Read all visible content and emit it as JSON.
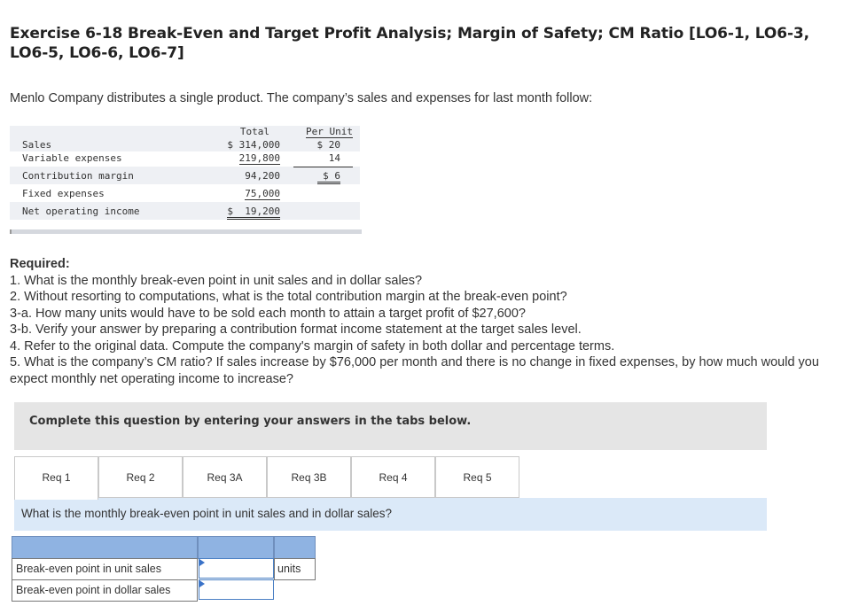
{
  "title": "Exercise 6-18 Break-Even and Target Profit Analysis; Margin of Safety; CM Ratio [LO6-1, LO6-3, LO6-5, LO6-6, LO6-7]",
  "intro": "Menlo Company distributes a single product. The company’s sales and expenses for last month follow:",
  "statement": {
    "col_total": "Total",
    "col_per_unit": "Per Unit",
    "rows": [
      {
        "label": "Sales",
        "total": "$ 314,000",
        "per_unit": "$ 20"
      },
      {
        "label": "Variable expenses",
        "total": "219,800",
        "per_unit": "14"
      },
      {
        "label": "Contribution margin",
        "total": "94,200",
        "per_unit": "$  6"
      },
      {
        "label": "Fixed expenses",
        "total": "75,000",
        "per_unit": ""
      },
      {
        "label": "Net operating income",
        "total": "$  19,200",
        "per_unit": ""
      }
    ]
  },
  "required": {
    "heading": "Required:",
    "items": [
      "1. What is the monthly break-even point in unit sales and in dollar sales?",
      "2. Without resorting to computations, what is the total contribution margin at the break-even point?",
      "3-a. How many units would have to be sold each month to attain a target profit of $27,600?",
      "3-b. Verify your answer by preparing a contribution format income statement at the target sales level.",
      "4. Refer to the original data. Compute the company's margin of safety in both dollar and percentage terms.",
      "5. What is the company’s CM ratio? If sales increase by $76,000 per month and there is no change in fixed expenses, by how much would you expect monthly net operating income to increase?"
    ]
  },
  "complete_text": "Complete this question by entering your answers in the tabs below.",
  "tabs": [
    "Req 1",
    "Req 2",
    "Req 3A",
    "Req 3B",
    "Req 4",
    "Req 5"
  ],
  "question": "What is the monthly break-even point in unit sales and in dollar sales?",
  "answers": {
    "row1_label": "Break-even point in unit sales",
    "row1_value": "",
    "row1_unit": "units",
    "row2_label": "Break-even point in dollar sales",
    "row2_value": ""
  }
}
